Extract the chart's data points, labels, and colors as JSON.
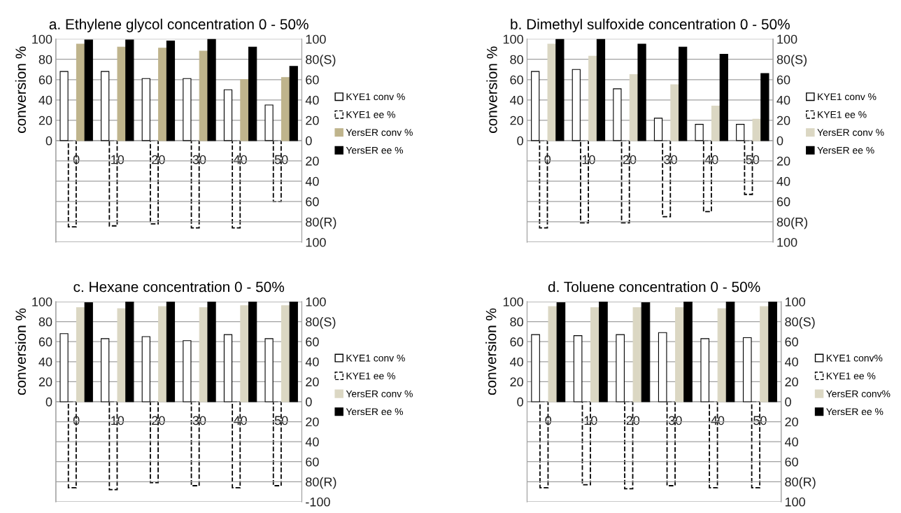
{
  "chart_data": [
    {
      "type": "bar",
      "title": "a. Ethylene glycol concentration 0 - 50%",
      "ylabel": "conversion %",
      "categories": [
        "0",
        "10",
        "20",
        "30",
        "40",
        "50"
      ],
      "series": [
        {
          "name": "KYE1 conv %",
          "color": "#ffffff",
          "values": [
            68,
            68,
            61,
            61,
            50,
            35
          ]
        },
        {
          "name": "KYE1 ee %",
          "color": "#ffffff",
          "line_style": "dashed",
          "axis": "y2",
          "values": [
            -85,
            -84,
            -82,
            -86,
            -86,
            -60
          ]
        },
        {
          "name": "YersER conv %",
          "color": "#bfb48c",
          "values": [
            95,
            92,
            91,
            88,
            60,
            62
          ]
        },
        {
          "name": "YersER ee %",
          "color": "#000000",
          "values": [
            99,
            99,
            98,
            100,
            92,
            73
          ]
        }
      ],
      "ylim": [
        -100,
        100
      ],
      "yticks": [
        {
          "value": -100,
          "label": null
        },
        {
          "value": -80,
          "label": null
        },
        {
          "value": -60,
          "label": null
        },
        {
          "value": -40,
          "label": null
        },
        {
          "value": -20,
          "label": null
        },
        0,
        20,
        40,
        60,
        80,
        100
      ],
      "y2lim": [
        -100,
        100
      ],
      "y2ticks": [
        {
          "value": -100,
          "label": "100"
        },
        {
          "value": -80,
          "label": "80(R)"
        },
        {
          "value": -60,
          "label": "60"
        },
        {
          "value": -40,
          "label": "40"
        },
        {
          "value": -20,
          "label": "20"
        },
        0,
        20,
        40,
        60,
        {
          "value": 80,
          "label": "80(S)"
        },
        100
      ],
      "grid": "y",
      "legend": "right"
    },
    {
      "type": "bar",
      "title": "b. Dimethyl sulfoxide concentration 0 - 50%",
      "ylabel": "conversion %",
      "categories": [
        "0",
        "10",
        "20",
        "30",
        "40",
        "50"
      ],
      "series": [
        {
          "name": "KYE1 conv %",
          "color": "#ffffff",
          "values": [
            68,
            70,
            51,
            22,
            16,
            16
          ]
        },
        {
          "name": "KYE1 ee %",
          "color": "#ffffff",
          "line_style": "dashed",
          "axis": "y2",
          "values": [
            -86,
            -81,
            -81,
            -75,
            -70,
            -53
          ]
        },
        {
          "name": "YersER conv %",
          "color": "#dbd7c3",
          "values": [
            95,
            83,
            65,
            55,
            34,
            21
          ]
        },
        {
          "name": "YersER ee %",
          "color": "#000000",
          "values": [
            100,
            100,
            95,
            92,
            85,
            66
          ]
        }
      ],
      "ylim": [
        -100,
        100
      ],
      "yticks": [
        {
          "value": -100,
          "label": null
        },
        {
          "value": -80,
          "label": null
        },
        {
          "value": -60,
          "label": null
        },
        {
          "value": -40,
          "label": null
        },
        {
          "value": -20,
          "label": null
        },
        0,
        20,
        40,
        60,
        80,
        100
      ],
      "y2lim": [
        -100,
        100
      ],
      "y2ticks": [
        {
          "value": -100,
          "label": "100"
        },
        {
          "value": -80,
          "label": "80(R)"
        },
        {
          "value": -60,
          "label": "60"
        },
        {
          "value": -40,
          "label": "40"
        },
        {
          "value": -20,
          "label": "20"
        },
        0,
        20,
        40,
        60,
        {
          "value": 80,
          "label": "80(S)"
        },
        100
      ],
      "grid": "y",
      "legend": "right"
    },
    {
      "type": "bar",
      "title": "c. Hexane concentration 0 - 50%",
      "ylabel": "conversion %",
      "categories": [
        "0",
        "10",
        "20",
        "30",
        "40",
        "50"
      ],
      "series": [
        {
          "name": "KYE1 conv %",
          "color": "#ffffff",
          "values": [
            68,
            63,
            65,
            61,
            67,
            63
          ]
        },
        {
          "name": "KYE1 ee %",
          "color": "#ffffff",
          "line_style": "dashed",
          "axis": "y2",
          "values": [
            -86,
            -88,
            -81,
            -84,
            -86,
            -84
          ]
        },
        {
          "name": "YersER conv %",
          "color": "#dbd7c3",
          "values": [
            94,
            93,
            95,
            94,
            96,
            96
          ]
        },
        {
          "name": "YersER ee %",
          "color": "#000000",
          "values": [
            99,
            100,
            100,
            100,
            100,
            100
          ]
        }
      ],
      "ylim": [
        -100,
        100
      ],
      "yticks": [
        {
          "value": -100,
          "label": null
        },
        {
          "value": -80,
          "label": null
        },
        {
          "value": -60,
          "label": null
        },
        {
          "value": -40,
          "label": null
        },
        {
          "value": -20,
          "label": null
        },
        0,
        20,
        40,
        60,
        80,
        100
      ],
      "y2lim": [
        -100,
        100
      ],
      "y2ticks": [
        -100,
        {
          "value": -80,
          "label": "80(R)"
        },
        {
          "value": -60,
          "label": "60"
        },
        {
          "value": -40,
          "label": "40"
        },
        {
          "value": -20,
          "label": "20"
        },
        0,
        20,
        40,
        60,
        {
          "value": 80,
          "label": "80(S)"
        },
        100
      ],
      "grid": "y",
      "legend": "right"
    },
    {
      "type": "bar",
      "title": "d. Toluene concentration 0 - 50%",
      "ylabel": "conversion %",
      "categories": [
        "0",
        "10",
        "20",
        "30",
        "40",
        "50"
      ],
      "series": [
        {
          "name": "KYE1 conv%",
          "color": "#ffffff",
          "values": [
            67,
            66,
            67,
            69,
            63,
            64
          ]
        },
        {
          "name": "KYE1 ee %",
          "color": "#ffffff",
          "line_style": "dashed",
          "axis": "y2",
          "values": [
            -86,
            -83,
            -87,
            -84,
            -86,
            -86
          ]
        },
        {
          "name": "YersER conv%",
          "color": "#dbd7c3",
          "values": [
            95,
            94,
            94,
            94,
            93,
            95
          ]
        },
        {
          "name": "YersER ee %",
          "color": "#000000",
          "values": [
            99,
            100,
            99,
            100,
            100,
            100
          ]
        }
      ],
      "ylim": [
        -100,
        100
      ],
      "yticks": [
        {
          "value": -100,
          "label": null
        },
        {
          "value": -80,
          "label": null
        },
        {
          "value": -60,
          "label": null
        },
        {
          "value": -40,
          "label": null
        },
        {
          "value": -20,
          "label": null
        },
        0,
        20,
        40,
        60,
        80,
        100
      ],
      "y2lim": [
        -100,
        100
      ],
      "y2ticks": [
        {
          "value": -100,
          "label": "100"
        },
        {
          "value": -80,
          "label": "80(R)"
        },
        {
          "value": -60,
          "label": "60"
        },
        {
          "value": -40,
          "label": "40"
        },
        {
          "value": -20,
          "label": "20"
        },
        0,
        20,
        40,
        60,
        {
          "value": 80,
          "label": "80(S)"
        },
        100
      ],
      "grid": "y",
      "legend": "right"
    }
  ]
}
